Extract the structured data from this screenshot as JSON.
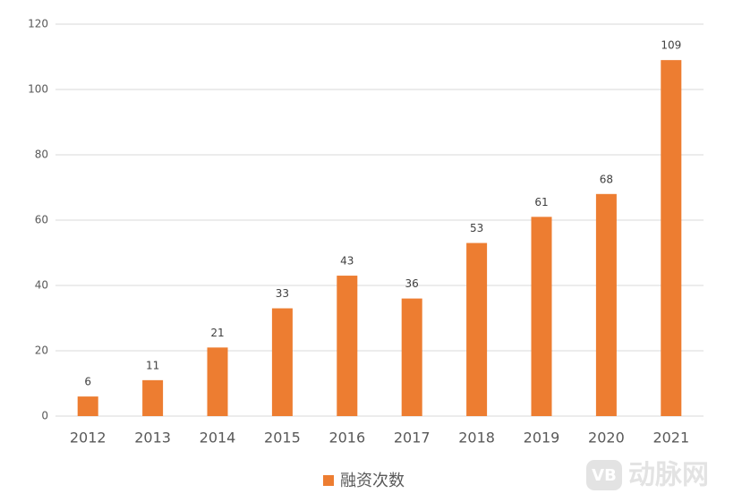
{
  "chart_data": {
    "type": "bar",
    "categories": [
      "2012",
      "2013",
      "2014",
      "2015",
      "2016",
      "2017",
      "2018",
      "2019",
      "2020",
      "2021"
    ],
    "series": [
      {
        "name": "融资次数",
        "color": "#ed7d31",
        "values": [
          6,
          11,
          21,
          33,
          43,
          36,
          53,
          61,
          68,
          109
        ]
      }
    ],
    "ylim": [
      0,
      120
    ],
    "yticks": [
      0,
      20,
      40,
      60,
      80,
      100,
      120
    ],
    "grid": true,
    "legend": "bottom"
  },
  "watermark": {
    "logo": "VB",
    "text": "动脉网"
  }
}
